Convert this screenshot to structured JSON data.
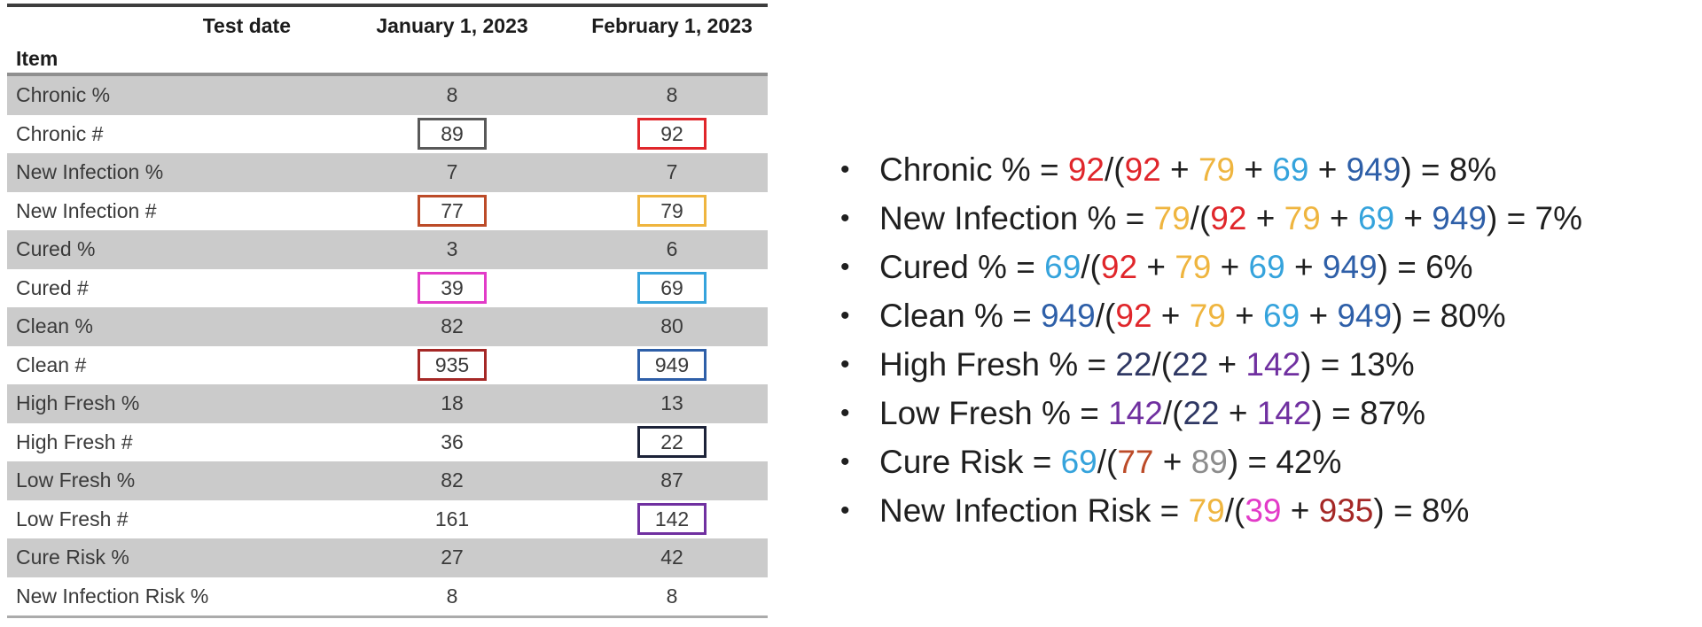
{
  "palette": {
    "black": "#1f1f1f",
    "red": "#e0262b",
    "gold": "#efb53f",
    "lightblue": "#35a3dc",
    "blue": "#2e5fa8",
    "navy": "#2f3864",
    "navybox": "#1c2238",
    "purple": "#7030a0",
    "rust": "#bc4b28",
    "gray": "#8c8c8c",
    "graybox": "#595959",
    "magenta": "#e23bc8",
    "darkred": "#a52826",
    "shaded_row_bg": "#cbcbcb"
  },
  "table": {
    "header": {
      "test_date_label": "Test date",
      "item_label": "Item",
      "col1": "January 1, 2023",
      "col2": "February 1, 2023"
    },
    "rows": [
      {
        "item": "Chronic %",
        "jan": "8",
        "feb": "8",
        "shaded": true
      },
      {
        "item": "Chronic #",
        "jan": "89",
        "feb": "92",
        "shaded": false,
        "jan_box": "graybox",
        "feb_box": "red"
      },
      {
        "item": "New Infection %",
        "jan": "7",
        "feb": "7",
        "shaded": true
      },
      {
        "item": "New Infection #",
        "jan": "77",
        "feb": "79",
        "shaded": false,
        "jan_box": "rust",
        "feb_box": "gold"
      },
      {
        "item": "Cured %",
        "jan": "3",
        "feb": "6",
        "shaded": true
      },
      {
        "item": "Cured #",
        "jan": "39",
        "feb": "69",
        "shaded": false,
        "jan_box": "magenta",
        "feb_box": "lightblue"
      },
      {
        "item": "Clean %",
        "jan": "82",
        "feb": "80",
        "shaded": true
      },
      {
        "item": "Clean #",
        "jan": "935",
        "feb": "949",
        "shaded": false,
        "jan_box": "darkred",
        "feb_box": "blue"
      },
      {
        "item": "High Fresh %",
        "jan": "18",
        "feb": "13",
        "shaded": true
      },
      {
        "item": "High Fresh #",
        "jan": "36",
        "feb": "22",
        "shaded": false,
        "feb_box": "navybox"
      },
      {
        "item": "Low Fresh %",
        "jan": "82",
        "feb": "87",
        "shaded": true
      },
      {
        "item": "Low Fresh #",
        "jan": "161",
        "feb": "142",
        "shaded": false,
        "feb_box": "purple"
      },
      {
        "item": "Cure Risk %",
        "jan": "27",
        "feb": "42",
        "shaded": true
      },
      {
        "item": "New Infection Risk %",
        "jan": "8",
        "feb": "8",
        "shaded": false
      }
    ]
  },
  "formulas": {
    "bullet_glyph": "•",
    "items": [
      {
        "segments": [
          {
            "t": "Chronic % = ",
            "c": "black"
          },
          {
            "t": "92",
            "c": "red"
          },
          {
            "t": "/(",
            "c": "black"
          },
          {
            "t": "92",
            "c": "red"
          },
          {
            "t": " + ",
            "c": "black"
          },
          {
            "t": "79",
            "c": "gold"
          },
          {
            "t": " + ",
            "c": "black"
          },
          {
            "t": "69",
            "c": "lightblue"
          },
          {
            "t": " + ",
            "c": "black"
          },
          {
            "t": "949",
            "c": "blue"
          },
          {
            "t": ") = 8%",
            "c": "black"
          }
        ]
      },
      {
        "segments": [
          {
            "t": "New Infection % = ",
            "c": "black"
          },
          {
            "t": "79",
            "c": "gold"
          },
          {
            "t": "/(",
            "c": "black"
          },
          {
            "t": "92",
            "c": "red"
          },
          {
            "t": " + ",
            "c": "black"
          },
          {
            "t": "79",
            "c": "gold"
          },
          {
            "t": " + ",
            "c": "black"
          },
          {
            "t": "69",
            "c": "lightblue"
          },
          {
            "t": " + ",
            "c": "black"
          },
          {
            "t": "949",
            "c": "blue"
          },
          {
            "t": ") = 7%",
            "c": "black"
          }
        ]
      },
      {
        "segments": [
          {
            "t": "Cured % = ",
            "c": "black"
          },
          {
            "t": "69",
            "c": "lightblue"
          },
          {
            "t": "/(",
            "c": "black"
          },
          {
            "t": "92",
            "c": "red"
          },
          {
            "t": " + ",
            "c": "black"
          },
          {
            "t": "79",
            "c": "gold"
          },
          {
            "t": " + ",
            "c": "black"
          },
          {
            "t": "69",
            "c": "lightblue"
          },
          {
            "t": " + ",
            "c": "black"
          },
          {
            "t": "949",
            "c": "blue"
          },
          {
            "t": ") = 6%",
            "c": "black"
          }
        ]
      },
      {
        "segments": [
          {
            "t": "Clean % = ",
            "c": "black"
          },
          {
            "t": "949",
            "c": "blue"
          },
          {
            "t": "/(",
            "c": "black"
          },
          {
            "t": "92",
            "c": "red"
          },
          {
            "t": " + ",
            "c": "black"
          },
          {
            "t": "79",
            "c": "gold"
          },
          {
            "t": " + ",
            "c": "black"
          },
          {
            "t": "69",
            "c": "lightblue"
          },
          {
            "t": " + ",
            "c": "black"
          },
          {
            "t": "949",
            "c": "blue"
          },
          {
            "t": ") = 80%",
            "c": "black"
          }
        ]
      },
      {
        "segments": [
          {
            "t": "High Fresh % = ",
            "c": "black"
          },
          {
            "t": "22",
            "c": "navy"
          },
          {
            "t": "/(",
            "c": "black"
          },
          {
            "t": "22",
            "c": "navy"
          },
          {
            "t": " + ",
            "c": "black"
          },
          {
            "t": "142",
            "c": "purple"
          },
          {
            "t": ") = 13%",
            "c": "black"
          }
        ]
      },
      {
        "segments": [
          {
            "t": "Low Fresh % = ",
            "c": "black"
          },
          {
            "t": "142",
            "c": "purple"
          },
          {
            "t": "/(",
            "c": "black"
          },
          {
            "t": "22",
            "c": "navy"
          },
          {
            "t": " + ",
            "c": "black"
          },
          {
            "t": "142",
            "c": "purple"
          },
          {
            "t": ") = 87%",
            "c": "black"
          }
        ]
      },
      {
        "segments": [
          {
            "t": "Cure Risk = ",
            "c": "black"
          },
          {
            "t": "69",
            "c": "lightblue"
          },
          {
            "t": "/(",
            "c": "black"
          },
          {
            "t": "77",
            "c": "rust"
          },
          {
            "t": " + ",
            "c": "black"
          },
          {
            "t": "89",
            "c": "gray"
          },
          {
            "t": ") = 42%",
            "c": "black"
          }
        ]
      },
      {
        "segments": [
          {
            "t": "New Infection Risk = ",
            "c": "black"
          },
          {
            "t": "79",
            "c": "gold"
          },
          {
            "t": "/(",
            "c": "black"
          },
          {
            "t": "39",
            "c": "magenta"
          },
          {
            "t": " + ",
            "c": "black"
          },
          {
            "t": "935",
            "c": "darkred"
          },
          {
            "t": ") = 8%",
            "c": "black"
          }
        ]
      }
    ]
  }
}
